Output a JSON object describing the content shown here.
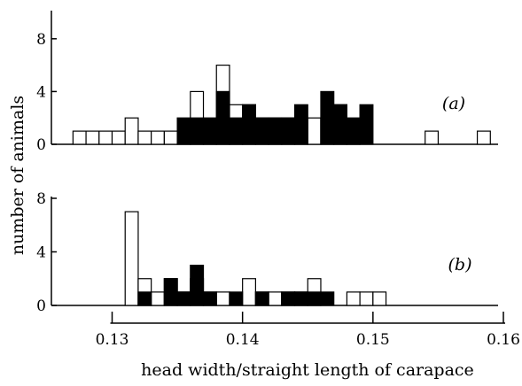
{
  "chart_data": [
    {
      "type": "bar",
      "panel_label": "(a)",
      "ylim": [
        0,
        10
      ],
      "y_ticks": [
        "0",
        "4",
        "8"
      ],
      "bin_width": 0.001,
      "series": [
        {
          "name": "",
          "fill": "#ffffff",
          "bins": [
            {
              "x": 0.127,
              "value": 1
            },
            {
              "x": 0.128,
              "value": 1
            },
            {
              "x": 0.129,
              "value": 1
            },
            {
              "x": 0.13,
              "value": 1
            },
            {
              "x": 0.131,
              "value": 2
            },
            {
              "x": 0.132,
              "value": 1
            },
            {
              "x": 0.133,
              "value": 1
            },
            {
              "x": 0.134,
              "value": 1
            },
            {
              "x": 0.135,
              "value": 1
            },
            {
              "x": 0.136,
              "value": 4
            },
            {
              "x": 0.137,
              "value": 1
            },
            {
              "x": 0.138,
              "value": 6
            },
            {
              "x": 0.139,
              "value": 3
            },
            {
              "x": 0.14,
              "value": 3
            },
            {
              "x": 0.141,
              "value": 2
            },
            {
              "x": 0.142,
              "value": 2
            },
            {
              "x": 0.143,
              "value": 2
            },
            {
              "x": 0.144,
              "value": 1
            },
            {
              "x": 0.145,
              "value": 2
            },
            {
              "x": 0.146,
              "value": 2
            },
            {
              "x": 0.147,
              "value": 3
            },
            {
              "x": 0.148,
              "value": 1
            },
            {
              "x": 0.154,
              "value": 1
            },
            {
              "x": 0.158,
              "value": 1
            }
          ]
        },
        {
          "name": "",
          "fill": "#000000",
          "bins": [
            {
              "x": 0.135,
              "value": 2
            },
            {
              "x": 0.136,
              "value": 2
            },
            {
              "x": 0.137,
              "value": 2
            },
            {
              "x": 0.138,
              "value": 4
            },
            {
              "x": 0.139,
              "value": 2
            },
            {
              "x": 0.14,
              "value": 3
            },
            {
              "x": 0.141,
              "value": 2
            },
            {
              "x": 0.142,
              "value": 2
            },
            {
              "x": 0.143,
              "value": 2
            },
            {
              "x": 0.144,
              "value": 3
            },
            {
              "x": 0.146,
              "value": 4
            },
            {
              "x": 0.147,
              "value": 3
            },
            {
              "x": 0.148,
              "value": 2
            },
            {
              "x": 0.149,
              "value": 3
            }
          ]
        }
      ]
    },
    {
      "type": "bar",
      "panel_label": "(b)",
      "ylim": [
        0,
        8
      ],
      "y_ticks": [
        "0",
        "4",
        "8"
      ],
      "bin_width": 0.001,
      "series": [
        {
          "name": "",
          "fill": "#ffffff",
          "bins": [
            {
              "x": 0.131,
              "value": 7
            },
            {
              "x": 0.132,
              "value": 2
            },
            {
              "x": 0.133,
              "value": 1
            },
            {
              "x": 0.134,
              "value": 2
            },
            {
              "x": 0.135,
              "value": 1
            },
            {
              "x": 0.136,
              "value": 2
            },
            {
              "x": 0.137,
              "value": 1
            },
            {
              "x": 0.138,
              "value": 1
            },
            {
              "x": 0.14,
              "value": 2
            },
            {
              "x": 0.141,
              "value": 1
            },
            {
              "x": 0.142,
              "value": 1
            },
            {
              "x": 0.143,
              "value": 1
            },
            {
              "x": 0.144,
              "value": 1
            },
            {
              "x": 0.145,
              "value": 2
            },
            {
              "x": 0.148,
              "value": 1
            },
            {
              "x": 0.149,
              "value": 1
            },
            {
              "x": 0.15,
              "value": 1
            }
          ]
        },
        {
          "name": "",
          "fill": "#000000",
          "bins": [
            {
              "x": 0.132,
              "value": 1
            },
            {
              "x": 0.134,
              "value": 2
            },
            {
              "x": 0.135,
              "value": 1
            },
            {
              "x": 0.136,
              "value": 3
            },
            {
              "x": 0.137,
              "value": 1
            },
            {
              "x": 0.139,
              "value": 1
            },
            {
              "x": 0.141,
              "value": 1
            },
            {
              "x": 0.143,
              "value": 1
            },
            {
              "x": 0.144,
              "value": 1
            },
            {
              "x": 0.145,
              "value": 1
            },
            {
              "x": 0.146,
              "value": 1
            }
          ]
        }
      ]
    }
  ],
  "x_axis": {
    "label": "head width/straight length of carapace",
    "range": [
      0.1265,
      0.16
    ],
    "ticks": [
      {
        "value": 0.13,
        "label": "0.13"
      },
      {
        "value": 0.14,
        "label": "0.14"
      },
      {
        "value": 0.15,
        "label": "0.15"
      },
      {
        "value": 0.16,
        "label": "0.16"
      }
    ]
  },
  "y_axis": {
    "label": "number of animals"
  },
  "colors": {
    "ink": "#000000",
    "paper": "#ffffff"
  }
}
